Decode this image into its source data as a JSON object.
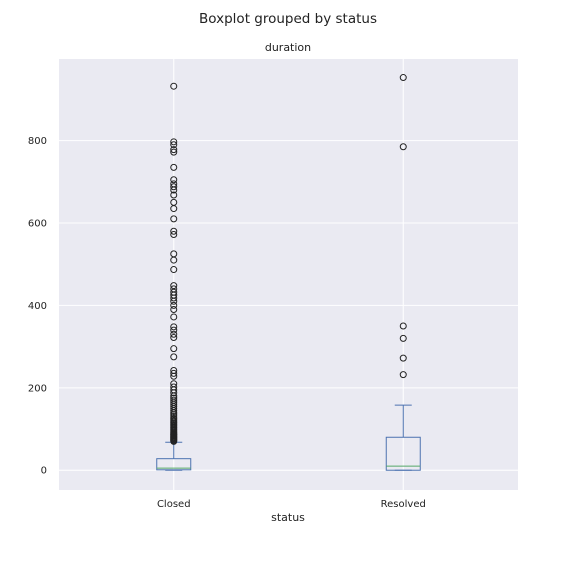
{
  "chart_data": {
    "type": "boxplot",
    "suptitle": "Boxplot grouped by status",
    "title": "duration",
    "xlabel": "status",
    "ylabel": "",
    "ylim": [
      -48,
      998
    ],
    "y_ticks": [
      0,
      200,
      400,
      600,
      800
    ],
    "grid": true,
    "colors": {
      "background": "#eaeaf2",
      "grid": "#ffffff",
      "box": "#4c72b0",
      "median": "#55a868",
      "flier": "#222222"
    },
    "categories": [
      "Closed",
      "Resolved"
    ],
    "boxes": [
      {
        "category": "Closed",
        "whisker_low": 0,
        "q1": 1,
        "median": 5,
        "q3": 28,
        "whisker_high": 68,
        "fliers": [
          70,
          72,
          74,
          76,
          78,
          80,
          82,
          84,
          86,
          88,
          90,
          93,
          96,
          99,
          102,
          105,
          108,
          111,
          114,
          117,
          120,
          124,
          128,
          132,
          136,
          140,
          145,
          150,
          155,
          160,
          165,
          170,
          175,
          180,
          188,
          195,
          202,
          210,
          228,
          235,
          242,
          275,
          295,
          322,
          330,
          340,
          348,
          372,
          390,
          400,
          410,
          418,
          425,
          432,
          440,
          448,
          487,
          510,
          525,
          572,
          580,
          610,
          635,
          650,
          668,
          680,
          688,
          695,
          705,
          735,
          772,
          778,
          790,
          797,
          932
        ]
      },
      {
        "category": "Resolved",
        "whisker_low": 0,
        "q1": 0,
        "median": 10,
        "q3": 80,
        "whisker_high": 158,
        "fliers": [
          232,
          272,
          320,
          350,
          785,
          953
        ]
      }
    ]
  }
}
